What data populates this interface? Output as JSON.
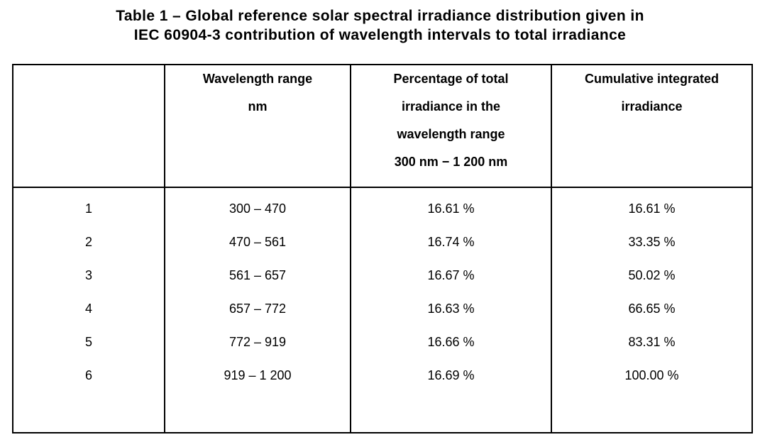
{
  "title": {
    "line1": "Table 1 – Global reference solar spectral irradiance distribution given in",
    "line2": "IEC 60904-3 contribution of wavelength intervals to total irradiance"
  },
  "table": {
    "headers": {
      "index": "",
      "wavelength": {
        "line1": "Wavelength range",
        "line2": "nm"
      },
      "percentage": {
        "line1": "Percentage of total",
        "line2": "irradiance in the",
        "line3": "wavelength range",
        "line4": "300 nm − 1 200 nm"
      },
      "cumulative": {
        "line1": "Cumulative integrated",
        "line2": "irradiance"
      }
    },
    "rows": [
      {
        "num": "1",
        "range": "300 – 470",
        "pct": "16.61 %",
        "cum": "16.61 %"
      },
      {
        "num": "2",
        "range": "470 – 561",
        "pct": "16.74 %",
        "cum": "33.35 %"
      },
      {
        "num": "3",
        "range": "561 – 657",
        "pct": "16.67 %",
        "cum": "50.02 %"
      },
      {
        "num": "4",
        "range": "657 – 772",
        "pct": "16.63 %",
        "cum": "66.65 %"
      },
      {
        "num": "5",
        "range": "772 – 919",
        "pct": "16.66 %",
        "cum": "83.31 %"
      },
      {
        "num": "6",
        "range": "919 – 1 200",
        "pct": "16.69 %",
        "cum": "100.00 %"
      }
    ]
  },
  "colors": {
    "text": "#000000",
    "border": "#000000",
    "background": "#ffffff"
  }
}
